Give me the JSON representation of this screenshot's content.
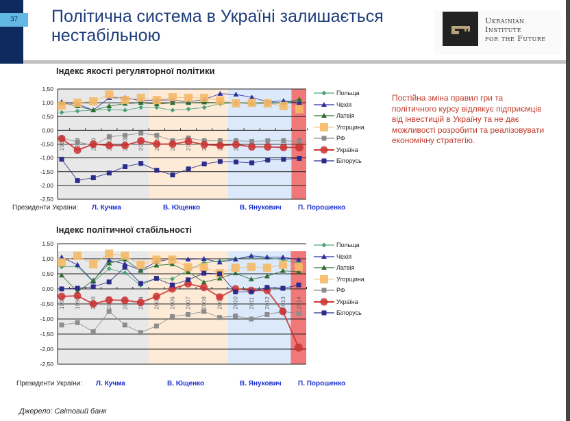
{
  "slide": {
    "page_number": "37",
    "title_line1": "Політична система в Україні залишається",
    "title_line2": "нестабільною",
    "logo": {
      "line1": "Ukrainian",
      "line2": "Institute",
      "line3": "for the Future"
    },
    "note": "Постійна зміна правил гри та політичного курсу відлякує підприємців від інвестицій в Україну та не дає можливості розробити та реалізовувати економічну стратегію.",
    "source": "Джерело: Світовий банк",
    "presidents_label": "Президенти України:",
    "presidents": [
      "Л. Кучма",
      "В. Ющенко",
      "В. Янукович",
      "П. Порошенко"
    ]
  },
  "colors": {
    "Польща": "#4aa37a",
    "Чехія": "#2e2e9e",
    "Латвія": "#2f6e2f",
    "Угорщина": "#f5b968",
    "РФ": "#8c8c8c",
    "Україна": "#cc3333",
    "Білорусь": "#2b2b8a",
    "kuchma_bg": "#e8e8e8",
    "yushchenko_bg": "#fdebd8",
    "yanukovych_bg": "#dbe9fa",
    "poroshenko_bg": "#f07878"
  },
  "chart_data": [
    {
      "type": "line",
      "title": "Індекс якості регуляторної політики",
      "x": [
        "1996",
        "1998",
        "2000",
        "2002",
        "2003",
        "2004",
        "2005",
        "2006",
        "2007",
        "2008",
        "2009",
        "2010",
        "2011",
        "2012",
        "2013",
        "2014"
      ],
      "ylim": [
        -2.5,
        1.5
      ],
      "yticks": [
        "1,50",
        "1,00",
        "0,50",
        "0,00",
        "-0,50",
        "-1,00",
        "-1,50",
        "-2,00",
        "-2,50"
      ],
      "grid": true,
      "legend_position": "right",
      "series": [
        {
          "name": "Польща",
          "values": [
            0.65,
            0.7,
            0.73,
            0.75,
            0.73,
            0.83,
            0.83,
            0.73,
            0.77,
            0.83,
            0.97,
            1.0,
            0.95,
            0.98,
            1.0,
            1.05
          ]
        },
        {
          "name": "Чехія",
          "values": [
            1.03,
            0.95,
            0.73,
            1.18,
            1.18,
            1.08,
            1.1,
            1.1,
            1.03,
            1.12,
            1.33,
            1.3,
            1.2,
            1.03,
            1.07,
            1.0
          ]
        },
        {
          "name": "Латвія",
          "values": [
            1.0,
            0.88,
            0.73,
            0.88,
            0.97,
            1.0,
            0.95,
            1.0,
            1.0,
            1.02,
            1.0,
            1.0,
            1.0,
            0.98,
            1.0,
            1.12
          ]
        },
        {
          "name": "Угорщина",
          "values": [
            0.9,
            1.0,
            1.05,
            1.3,
            1.1,
            1.18,
            1.1,
            1.2,
            1.18,
            1.18,
            1.08,
            0.98,
            1.0,
            0.98,
            0.88,
            0.77
          ]
        },
        {
          "name": "РФ",
          "values": [
            -0.28,
            -0.42,
            -0.55,
            -0.23,
            -0.18,
            -0.1,
            -0.18,
            -0.38,
            -0.28,
            -0.38,
            -0.38,
            -0.38,
            -0.4,
            -0.38,
            -0.38,
            -0.4
          ]
        },
        {
          "name": "Україна",
          "values": [
            -0.3,
            -0.72,
            -0.5,
            -0.55,
            -0.55,
            -0.38,
            -0.5,
            -0.5,
            -0.4,
            -0.52,
            -0.55,
            -0.52,
            -0.6,
            -0.6,
            -0.62,
            -0.62
          ]
        },
        {
          "name": "Білорусь",
          "values": [
            -1.05,
            -1.82,
            -1.72,
            -1.55,
            -1.32,
            -1.2,
            -1.45,
            -1.62,
            -1.4,
            -1.22,
            -1.13,
            -1.15,
            -1.18,
            -1.08,
            -1.05,
            -1.02
          ]
        }
      ]
    },
    {
      "type": "line",
      "title": "Індекс політичної стабільності",
      "x": [
        "1996",
        "1998",
        "2000",
        "2002",
        "2003",
        "2004",
        "2005",
        "2006",
        "2007",
        "2008",
        "2009",
        "2010",
        "2011",
        "2012",
        "2013",
        "2014"
      ],
      "ylim": [
        -2.5,
        1.5
      ],
      "yticks": [
        "1,50",
        "1,00",
        "0,50",
        "0,00",
        "-0,50",
        "-1,00",
        "-1,50",
        "-2,00",
        "-2,50"
      ],
      "grid": true,
      "legend_position": "right",
      "series": [
        {
          "name": "Польща",
          "values": [
            0.73,
            0.75,
            0.23,
            0.67,
            0.53,
            0.12,
            0.35,
            0.33,
            0.62,
            0.87,
            0.92,
            1.0,
            1.05,
            1.03,
            0.97,
            0.85
          ]
        },
        {
          "name": "Чехія",
          "values": [
            1.05,
            0.8,
            0.25,
            0.95,
            0.83,
            0.62,
            0.9,
            1.0,
            0.98,
            1.0,
            0.88,
            0.98,
            1.1,
            1.05,
            1.05,
            0.97
          ]
        },
        {
          "name": "Латвія",
          "values": [
            0.45,
            -0.1,
            0.28,
            0.85,
            0.98,
            0.6,
            0.78,
            0.82,
            0.57,
            0.22,
            0.35,
            0.52,
            0.32,
            0.42,
            0.6,
            0.57
          ]
        },
        {
          "name": "Угорщина",
          "values": [
            0.88,
            1.1,
            0.82,
            1.17,
            1.1,
            0.8,
            0.97,
            0.97,
            0.72,
            0.72,
            0.52,
            0.7,
            0.73,
            0.7,
            0.8,
            0.73
          ]
        },
        {
          "name": "РФ",
          "values": [
            -1.2,
            -1.12,
            -1.42,
            -0.75,
            -1.2,
            -1.45,
            -1.23,
            -0.92,
            -0.85,
            -0.75,
            -0.95,
            -0.9,
            -1.0,
            -0.85,
            -0.75,
            -0.82
          ]
        },
        {
          "name": "Україна",
          "values": [
            -0.25,
            -0.23,
            -0.5,
            -0.37,
            -0.38,
            -0.45,
            -0.25,
            0.0,
            0.17,
            0.05,
            -0.27,
            0.0,
            -0.05,
            -0.05,
            -0.75,
            -1.95
          ]
        },
        {
          "name": "Білорусь",
          "values": [
            0.0,
            0.02,
            0.07,
            0.23,
            0.72,
            0.18,
            0.35,
            0.13,
            0.3,
            0.52,
            0.5,
            -0.1,
            -0.1,
            0.05,
            0.02,
            0.13
          ]
        }
      ]
    }
  ]
}
